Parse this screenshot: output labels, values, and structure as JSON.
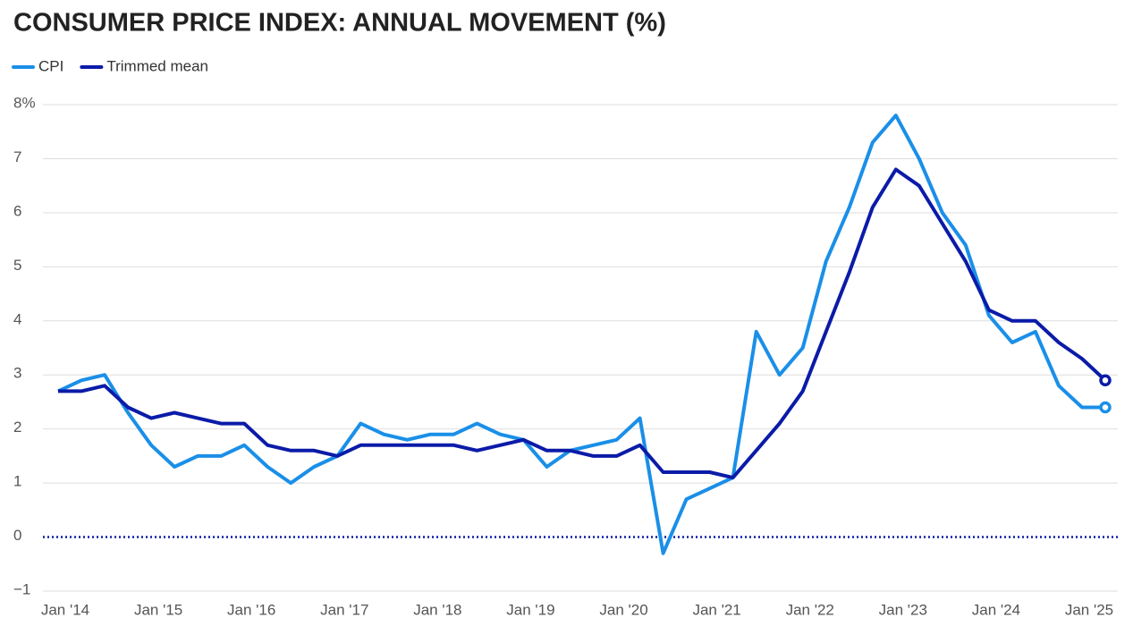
{
  "chart_data": {
    "type": "line",
    "title": "CONSUMER PRICE INDEX: ANNUAL MOVEMENT (%)",
    "categories": [
      "Jan '14",
      null,
      null,
      null,
      "Jan '15",
      null,
      null,
      null,
      "Jan '16",
      null,
      null,
      null,
      "Jan '17",
      null,
      null,
      null,
      "Jan '18",
      null,
      null,
      null,
      "Jan '19",
      null,
      null,
      null,
      "Jan '20",
      null,
      null,
      null,
      "Jan '21",
      null,
      null,
      null,
      "Jan '22",
      null,
      null,
      null,
      "Jan '23",
      null,
      null,
      null,
      "Jan '24",
      null,
      null,
      null,
      "Jan '25",
      null
    ],
    "series": [
      {
        "name": "CPI",
        "color": "#1a8fe8",
        "values": [
          2.7,
          2.9,
          3.0,
          2.3,
          1.7,
          1.3,
          1.5,
          1.5,
          1.7,
          1.3,
          1.0,
          1.3,
          1.5,
          2.1,
          1.9,
          1.8,
          1.9,
          1.9,
          2.1,
          1.9,
          1.8,
          1.3,
          1.6,
          1.7,
          1.8,
          2.2,
          -0.3,
          0.7,
          0.9,
          1.1,
          3.8,
          3.0,
          3.5,
          5.1,
          6.1,
          7.3,
          7.8,
          7.0,
          6.0,
          5.4,
          4.1,
          3.6,
          3.8,
          2.8,
          2.4,
          2.4
        ]
      },
      {
        "name": "Trimmed mean",
        "color": "#0b1ba8",
        "values": [
          2.7,
          2.7,
          2.8,
          2.4,
          2.2,
          2.3,
          2.2,
          2.1,
          2.1,
          1.7,
          1.6,
          1.6,
          1.5,
          1.7,
          1.7,
          1.7,
          1.7,
          1.7,
          1.6,
          1.7,
          1.8,
          1.6,
          1.6,
          1.5,
          1.5,
          1.7,
          1.2,
          1.2,
          1.2,
          1.1,
          1.6,
          2.1,
          2.7,
          3.8,
          4.9,
          6.1,
          6.8,
          6.5,
          5.8,
          5.1,
          4.2,
          4.0,
          4.0,
          3.6,
          3.3,
          2.9
        ]
      }
    ],
    "ylim": [
      -1,
      8
    ],
    "yticks": [
      {
        "value": -1,
        "label": "−1"
      },
      0,
      1,
      2,
      3,
      4,
      5,
      6,
      7,
      {
        "value": 8,
        "label": "8%"
      }
    ],
    "grid": true
  }
}
